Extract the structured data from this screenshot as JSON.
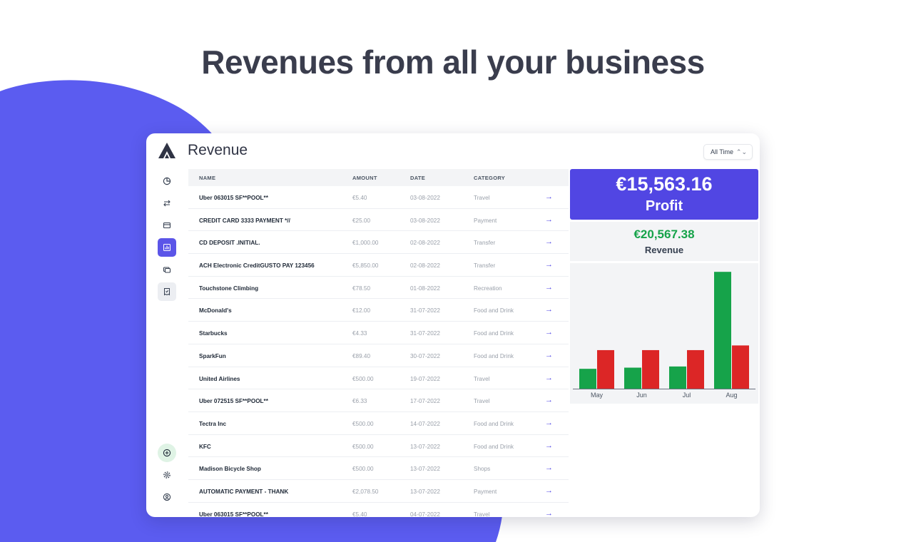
{
  "headline": "Revenues from all your business",
  "app": {
    "title": "Revenue",
    "range_select": {
      "value": "All Time"
    }
  },
  "sidebar": {
    "items": [
      {
        "name": "overview",
        "icon": "pie-chart-icon",
        "active": false
      },
      {
        "name": "transfers",
        "icon": "swap-arrows-icon",
        "active": false
      },
      {
        "name": "cards",
        "icon": "credit-card-icon",
        "active": false
      },
      {
        "name": "revenue",
        "icon": "bar-chart-icon",
        "active": true
      },
      {
        "name": "accounts",
        "icon": "cards-stack-icon",
        "active": false
      },
      {
        "name": "receipts",
        "icon": "receipt-icon",
        "active": false
      }
    ],
    "bottom": [
      {
        "name": "add",
        "icon": "plus-circle-icon"
      },
      {
        "name": "settings",
        "icon": "gear-icon"
      },
      {
        "name": "profile",
        "icon": "user-circle-icon"
      }
    ]
  },
  "table": {
    "headers": {
      "name": "NAME",
      "amount": "AMOUNT",
      "date": "DATE",
      "category": "CATEGORY"
    },
    "rows": [
      {
        "name": "Uber 063015 SF**POOL**",
        "amount": "€5.40",
        "date": "03-08-2022",
        "category": "Travel",
        "arrow": "→"
      },
      {
        "name": "CREDIT CARD 3333 PAYMENT *//",
        "amount": "€25.00",
        "date": "03-08-2022",
        "category": "Payment",
        "arrow": "→"
      },
      {
        "name": "CD DEPOSIT .INITIAL.",
        "amount": "€1,000.00",
        "date": "02-08-2022",
        "category": "Transfer",
        "arrow": "→"
      },
      {
        "name": "ACH Electronic CreditGUSTO PAY 123456",
        "amount": "€5,850.00",
        "date": "02-08-2022",
        "category": "Transfer",
        "arrow": "→"
      },
      {
        "name": "Touchstone Climbing",
        "amount": "€78.50",
        "date": "01-08-2022",
        "category": "Recreation",
        "arrow": "→"
      },
      {
        "name": "McDonald's",
        "amount": "€12.00",
        "date": "31-07-2022",
        "category": "Food and Drink",
        "arrow": "→"
      },
      {
        "name": "Starbucks",
        "amount": "€4.33",
        "date": "31-07-2022",
        "category": "Food and Drink",
        "arrow": "→"
      },
      {
        "name": "SparkFun",
        "amount": "€89.40",
        "date": "30-07-2022",
        "category": "Food and Drink",
        "arrow": "→"
      },
      {
        "name": "United Airlines",
        "amount": "€500.00",
        "date": "19-07-2022",
        "category": "Travel",
        "arrow": "→"
      },
      {
        "name": "Uber 072515 SF**POOL**",
        "amount": "€6.33",
        "date": "17-07-2022",
        "category": "Travel",
        "arrow": "→"
      },
      {
        "name": "Tectra Inc",
        "amount": "€500.00",
        "date": "14-07-2022",
        "category": "Food and Drink",
        "arrow": "→"
      },
      {
        "name": "KFC",
        "amount": "€500.00",
        "date": "13-07-2022",
        "category": "Food and Drink",
        "arrow": "→"
      },
      {
        "name": "Madison Bicycle Shop",
        "amount": "€500.00",
        "date": "13-07-2022",
        "category": "Shops",
        "arrow": "→"
      },
      {
        "name": "AUTOMATIC PAYMENT - THANK",
        "amount": "€2,078.50",
        "date": "13-07-2022",
        "category": "Payment",
        "arrow": "→"
      },
      {
        "name": "Uber 063015 SF**POOL**",
        "amount": "€5.40",
        "date": "04-07-2022",
        "category": "Travel",
        "arrow": "→"
      }
    ]
  },
  "summary": {
    "profit_value": "€15,563.16",
    "profit_label": "Profit",
    "revenue_value": "€20,567.38",
    "revenue_label": "Revenue"
  },
  "colors": {
    "accent": "#5146e3",
    "background_blob": "#5b5cf0",
    "income": "#16a34a",
    "expense": "#dc2626"
  },
  "chart_data": {
    "type": "bar",
    "categories": [
      "May",
      "Jun",
      "Jul",
      "Aug"
    ],
    "series": [
      {
        "color": "#16a34a",
        "values": [
          1700,
          1800,
          1900,
          10000
        ]
      },
      {
        "color": "#dc2626",
        "values": [
          3300,
          3300,
          3300,
          3700
        ]
      }
    ],
    "ylim": [
      0,
      10500
    ],
    "grid": false,
    "title": "",
    "xlabel": "",
    "ylabel": ""
  }
}
